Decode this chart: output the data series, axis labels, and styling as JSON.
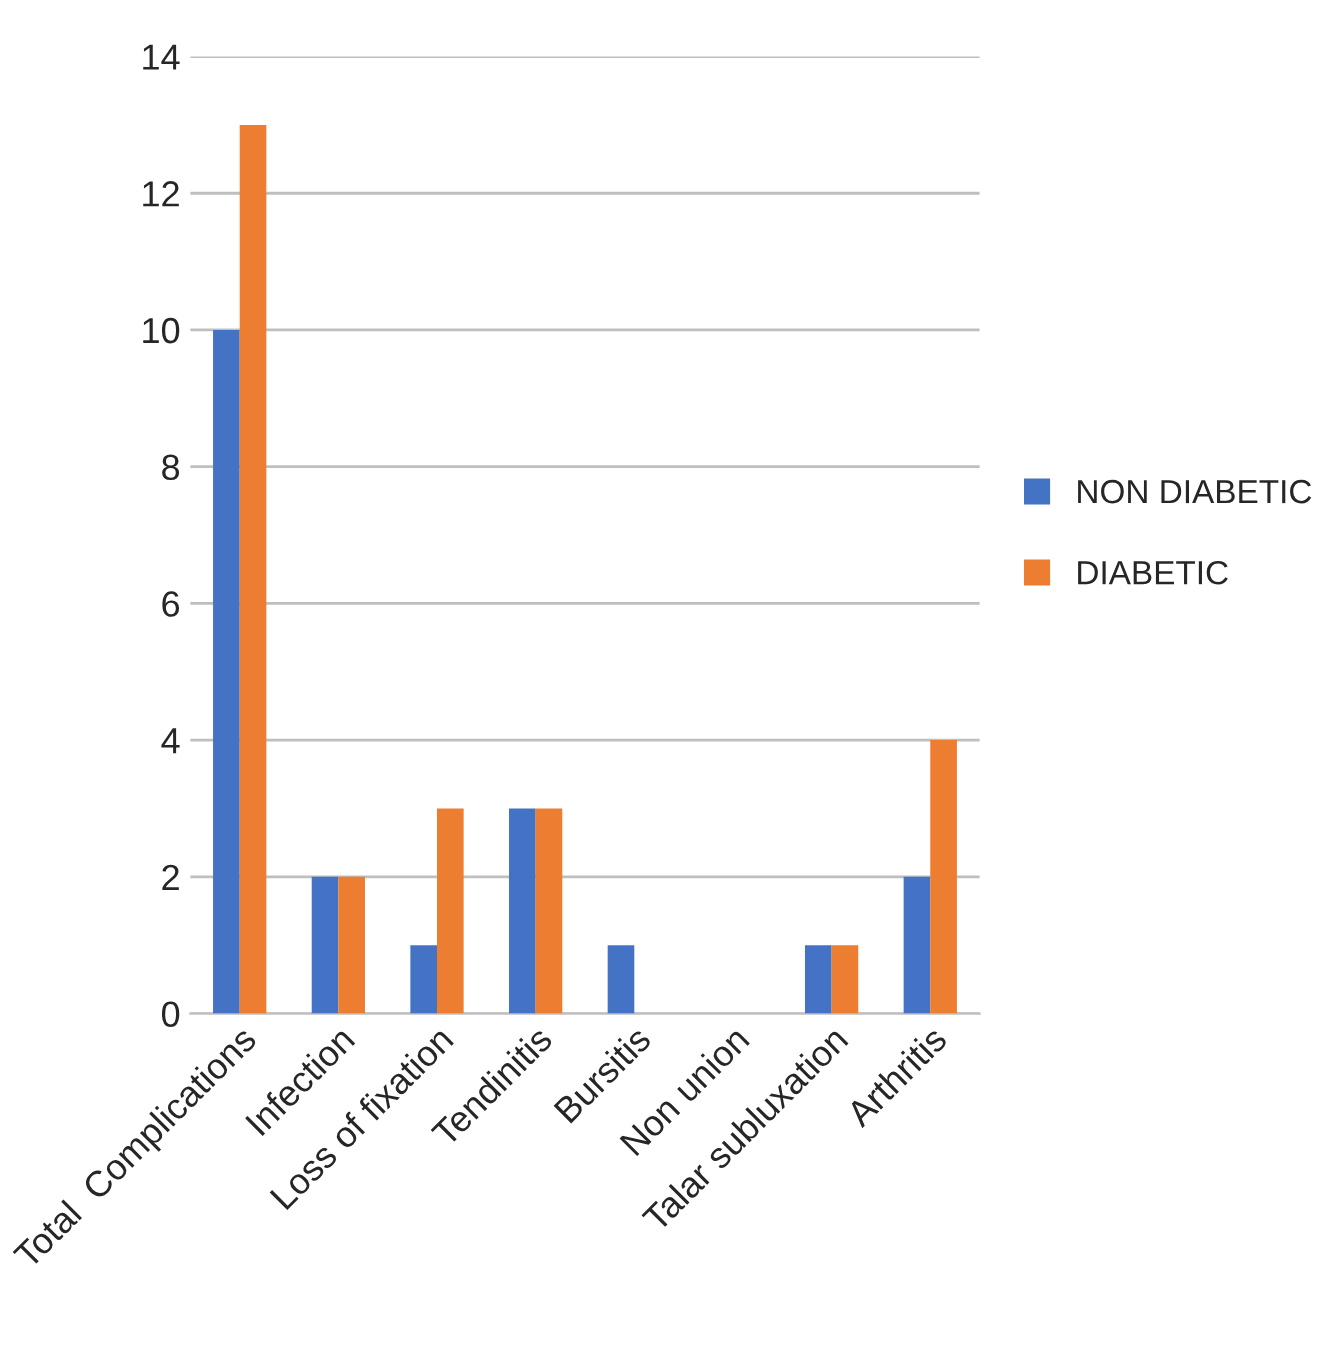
{
  "chart_data": {
    "type": "bar",
    "categories": [
      "Total  Complications",
      "Infection",
      "Loss of fixation",
      "Tendinitis",
      "Bursitis",
      "Non union",
      "Talar subluxation",
      "Arthritis"
    ],
    "series": [
      {
        "name": "NON DIABETIC",
        "color": "#4472c4",
        "values": [
          10,
          2,
          1,
          3,
          1,
          0,
          1,
          2
        ]
      },
      {
        "name": "DIABETIC",
        "color": "#ed7d31",
        "values": [
          13,
          2,
          3,
          3,
          0,
          0,
          1,
          4
        ]
      }
    ],
    "ylim": [
      0,
      14
    ],
    "yticks": [
      0,
      2,
      4,
      6,
      8,
      10,
      12,
      14
    ],
    "grid": "y",
    "legend": "right"
  }
}
